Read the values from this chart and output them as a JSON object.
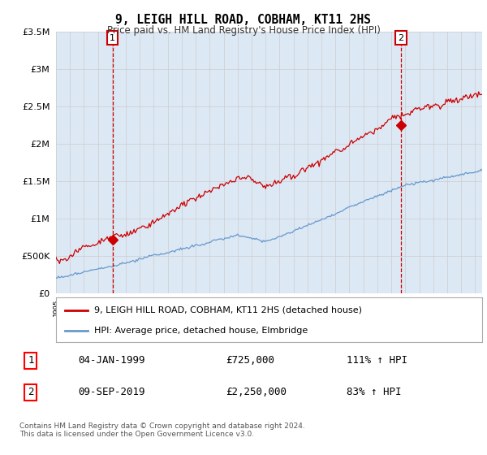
{
  "title": "9, LEIGH HILL ROAD, COBHAM, KT11 2HS",
  "subtitle": "Price paid vs. HM Land Registry's House Price Index (HPI)",
  "ylim": [
    0,
    3500000
  ],
  "yticks": [
    0,
    500000,
    1000000,
    1500000,
    2000000,
    2500000,
    3000000,
    3500000
  ],
  "ytick_labels": [
    "£0",
    "£500K",
    "£1M",
    "£1.5M",
    "£2M",
    "£2.5M",
    "£3M",
    "£3.5M"
  ],
  "sale1_year": 1999.04,
  "sale1_price": 725000,
  "sale1_date": "04-JAN-1999",
  "sale1_label": "111% ↑ HPI",
  "sale2_year": 2019.69,
  "sale2_price": 2250000,
  "sale2_date": "09-SEP-2019",
  "sale2_label": "83% ↑ HPI",
  "legend_property": "9, LEIGH HILL ROAD, COBHAM, KT11 2HS (detached house)",
  "legend_hpi": "HPI: Average price, detached house, Elmbridge",
  "footer": "Contains HM Land Registry data © Crown copyright and database right 2024.\nThis data is licensed under the Open Government Licence v3.0.",
  "property_line_color": "#cc0000",
  "hpi_line_color": "#6699cc",
  "vline_color": "#cc0000",
  "grid_color": "#cccccc",
  "background_color": "#ffffff",
  "plot_bg_color": "#dde8f5"
}
